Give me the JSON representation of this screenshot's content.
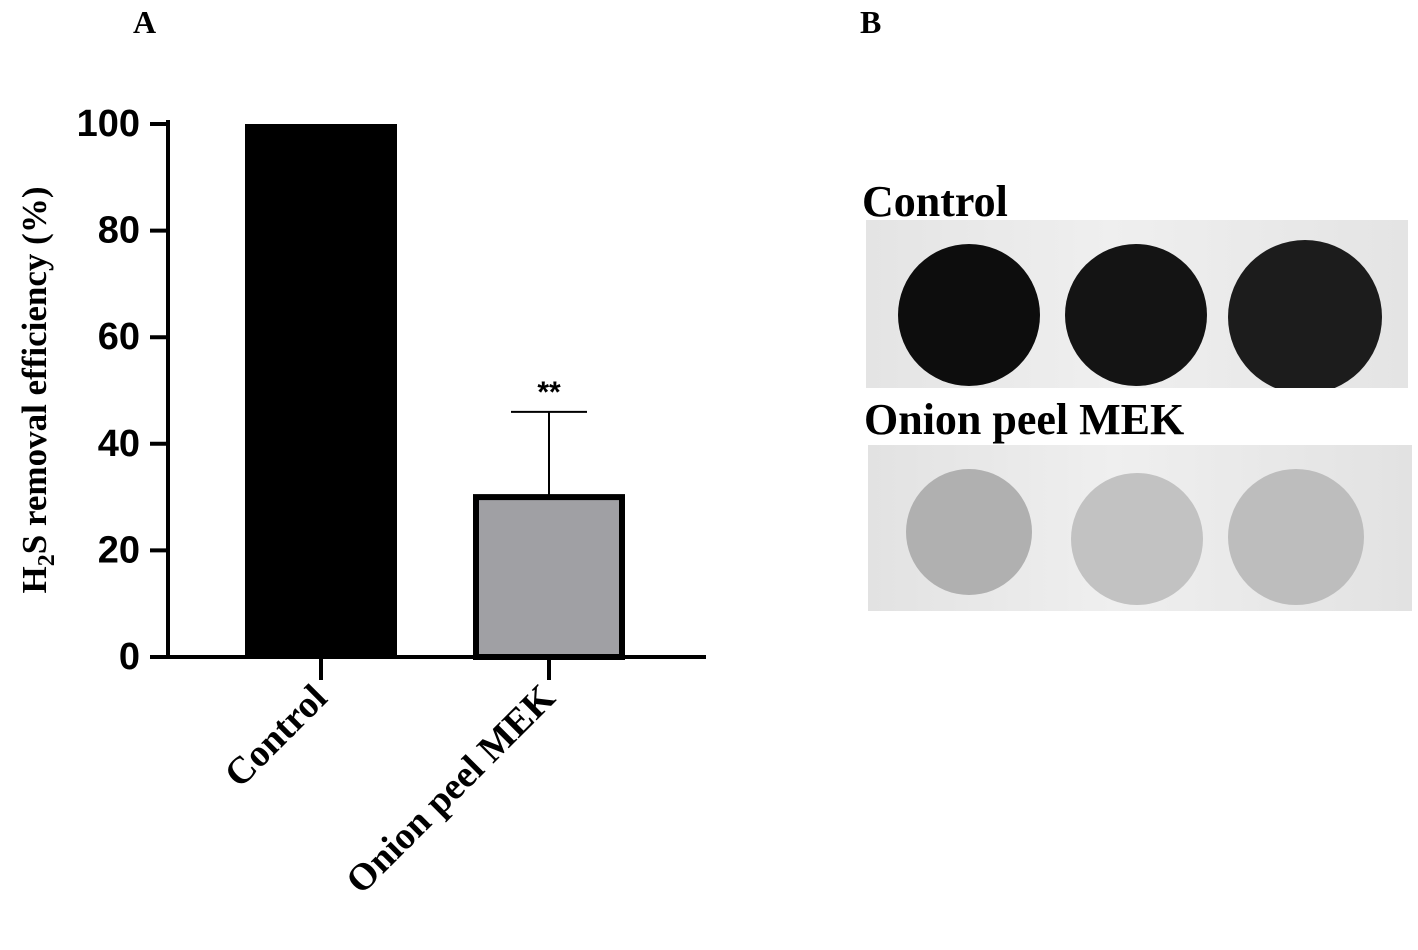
{
  "panels": {
    "a": "A",
    "b": "B"
  },
  "chart_data": {
    "type": "bar",
    "categories": [
      "Control",
      "Onion peel MEK"
    ],
    "values": [
      100,
      30
    ],
    "error_upper": [
      0,
      16
    ],
    "significance": [
      "",
      "**"
    ],
    "bar_colors": [
      "#000000",
      "#a0a0a4"
    ],
    "ylabel_main": "H",
    "ylabel_sub": "2",
    "ylabel_rest": "S removal efficiency (%)",
    "ylim": [
      0,
      100
    ],
    "yticks": [
      0,
      20,
      40,
      60,
      80,
      100
    ],
    "grid": false
  },
  "assay": {
    "rows": [
      {
        "label": "Control",
        "spot_colors": [
          "#0d0d0d",
          "#141414",
          "#1c1c1c"
        ],
        "plate_color": "#e4e4e4"
      },
      {
        "label": "Onion peel MEK",
        "spot_colors": [
          "#b0b0b0",
          "#c2c2c2",
          "#bdbdbd"
        ],
        "plate_color": "#e2e2e2"
      }
    ]
  }
}
